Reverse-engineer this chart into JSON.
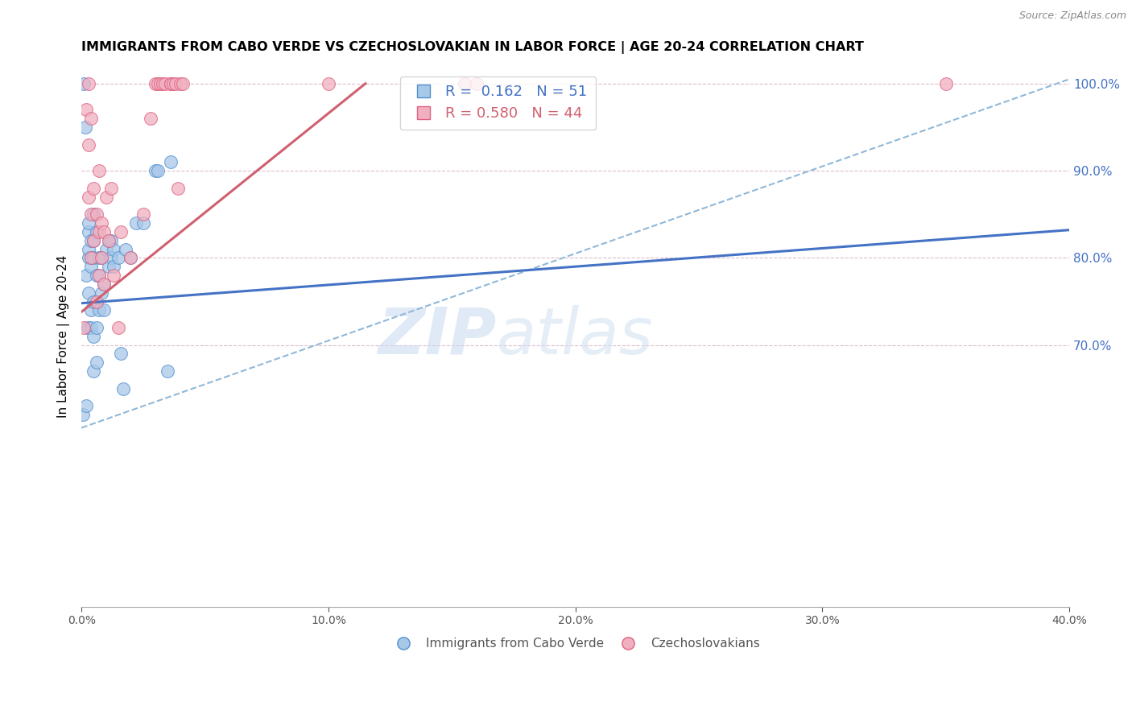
{
  "title": "IMMIGRANTS FROM CABO VERDE VS CZECHOSLOVAKIAN IN LABOR FORCE | AGE 20-24 CORRELATION CHART",
  "source": "Source: ZipAtlas.com",
  "ylabel": "In Labor Force | Age 20-24",
  "r_blue": 0.162,
  "n_blue": 51,
  "r_pink": 0.58,
  "n_pink": 44,
  "color_blue_fill": "#a8c8e8",
  "color_pink_fill": "#f0b0c0",
  "color_blue_edge": "#5090d0",
  "color_pink_edge": "#e06080",
  "color_blue_line": "#4472c4",
  "color_pink_line": "#d06070",
  "color_dashed": "#90b8d8",
  "watermark": "ZIPatlas",
  "watermark_color": "#c8daf0",
  "right_ytick_color": "#4472c4",
  "xlim": [
    0.0,
    0.4
  ],
  "ylim": [
    0.4,
    1.02
  ],
  "blue_scatter_x": [
    0.0005,
    0.001,
    0.0015,
    0.002,
    0.002,
    0.0025,
    0.003,
    0.003,
    0.003,
    0.003,
    0.003,
    0.004,
    0.004,
    0.004,
    0.004,
    0.004,
    0.005,
    0.005,
    0.005,
    0.005,
    0.005,
    0.005,
    0.006,
    0.006,
    0.006,
    0.006,
    0.007,
    0.007,
    0.007,
    0.008,
    0.008,
    0.009,
    0.009,
    0.01,
    0.011,
    0.011,
    0.012,
    0.012,
    0.013,
    0.013,
    0.015,
    0.016,
    0.017,
    0.018,
    0.02,
    0.022,
    0.025,
    0.03,
    0.031,
    0.035,
    0.036
  ],
  "blue_scatter_y": [
    0.62,
    1.0,
    0.95,
    0.63,
    0.78,
    0.72,
    0.76,
    0.8,
    0.81,
    0.83,
    0.84,
    0.72,
    0.74,
    0.79,
    0.8,
    0.82,
    0.67,
    0.71,
    0.75,
    0.8,
    0.82,
    0.85,
    0.68,
    0.72,
    0.78,
    0.83,
    0.74,
    0.78,
    0.8,
    0.76,
    0.8,
    0.74,
    0.77,
    0.81,
    0.79,
    0.82,
    0.8,
    0.82,
    0.79,
    0.81,
    0.8,
    0.69,
    0.65,
    0.81,
    0.8,
    0.84,
    0.84,
    0.9,
    0.9,
    0.67,
    0.91
  ],
  "pink_scatter_x": [
    0.001,
    0.002,
    0.003,
    0.003,
    0.003,
    0.004,
    0.004,
    0.004,
    0.005,
    0.005,
    0.006,
    0.006,
    0.007,
    0.007,
    0.007,
    0.008,
    0.008,
    0.009,
    0.009,
    0.01,
    0.011,
    0.012,
    0.013,
    0.015,
    0.016,
    0.02,
    0.025,
    0.028,
    0.03,
    0.031,
    0.032,
    0.033,
    0.034,
    0.036,
    0.036,
    0.037,
    0.038,
    0.039,
    0.04,
    0.041,
    0.1,
    0.155,
    0.16,
    0.35
  ],
  "pink_scatter_y": [
    0.72,
    0.97,
    0.87,
    0.93,
    1.0,
    0.8,
    0.85,
    0.96,
    0.82,
    0.88,
    0.75,
    0.85,
    0.78,
    0.83,
    0.9,
    0.8,
    0.84,
    0.77,
    0.83,
    0.87,
    0.82,
    0.88,
    0.78,
    0.72,
    0.83,
    0.8,
    0.85,
    0.96,
    1.0,
    1.0,
    1.0,
    1.0,
    1.0,
    1.0,
    1.0,
    1.0,
    1.0,
    0.88,
    1.0,
    1.0,
    1.0,
    1.0,
    1.0,
    1.0
  ],
  "blue_line_x": [
    0.0,
    0.4
  ],
  "blue_line_y": [
    0.748,
    0.832
  ],
  "pink_line_x": [
    0.0,
    0.115
  ],
  "pink_line_y": [
    0.738,
    1.0
  ],
  "dash_line_x": [
    0.0,
    0.4
  ],
  "dash_line_y": [
    0.605,
    1.005
  ]
}
